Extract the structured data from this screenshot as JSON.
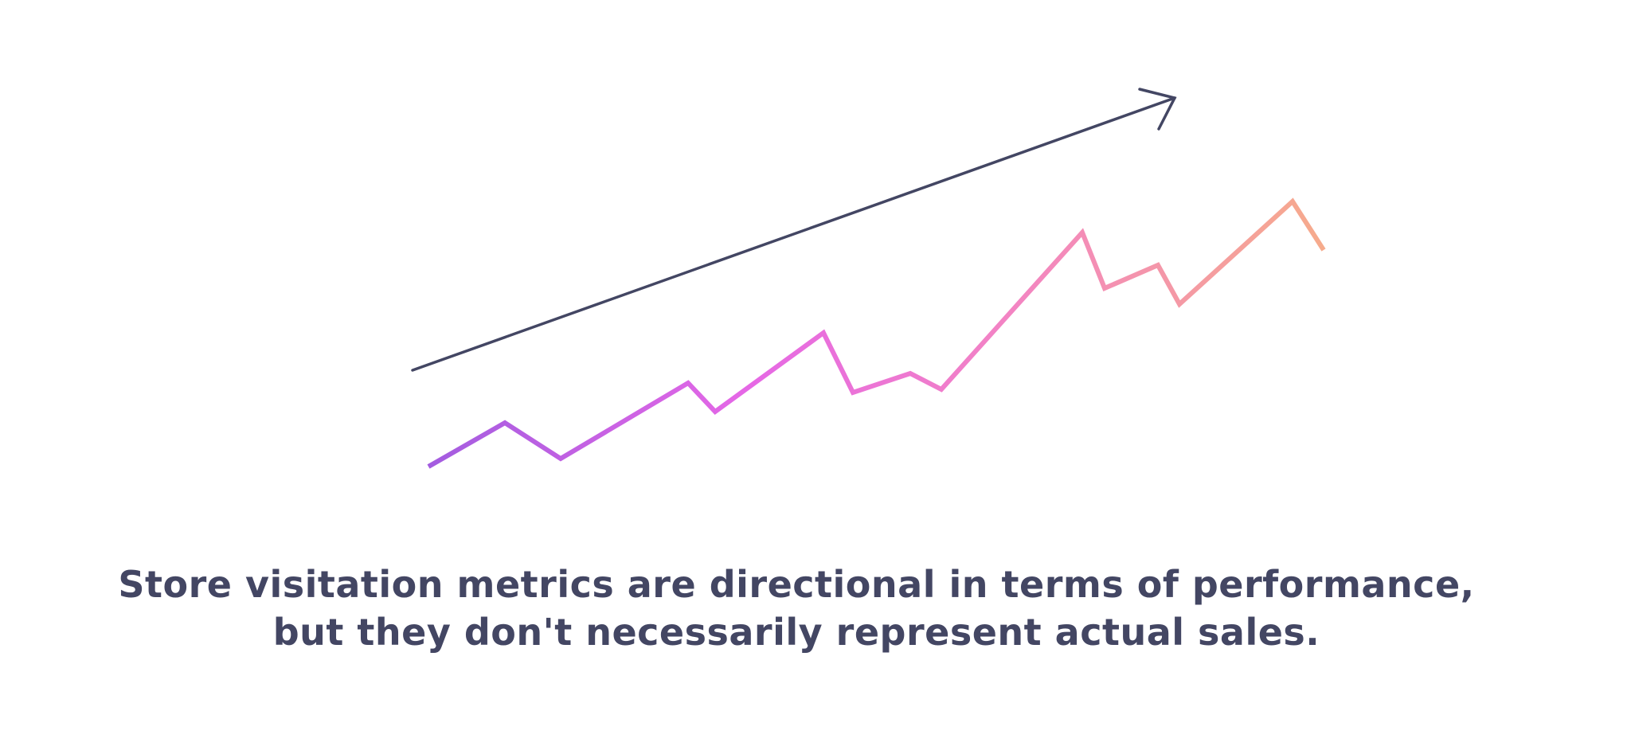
{
  "caption": {
    "line1": "Store visitation metrics are directional in terms of performance,",
    "line2": "but they don't necessarily represent actual sales."
  },
  "trend_line": {
    "direction": "up",
    "color": "#434663"
  },
  "zigzag_line": {
    "gradient_colors": [
      "#a35ce0",
      "#e567e6",
      "#f384c3",
      "#f6ab8c"
    ]
  }
}
